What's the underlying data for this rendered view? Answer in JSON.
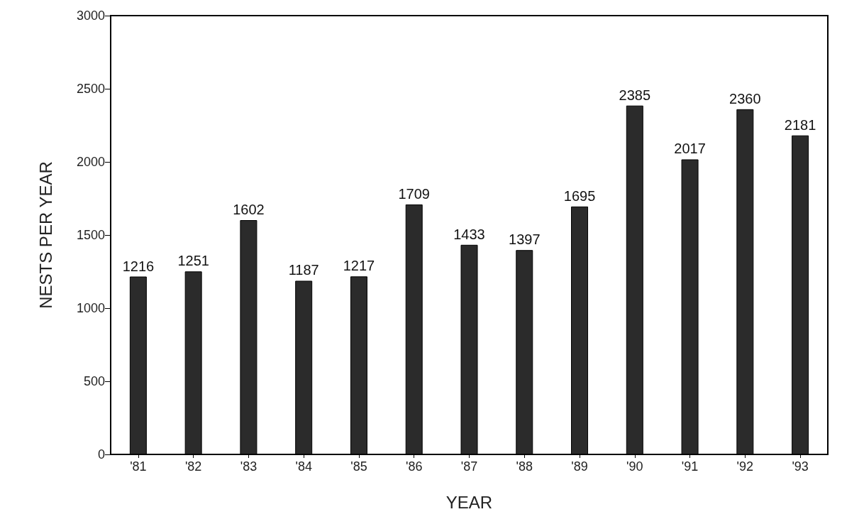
{
  "chart_data": {
    "type": "bar",
    "xlabel": "YEAR",
    "ylabel": "NESTS PER YEAR",
    "categories": [
      "'81",
      "'82",
      "'83",
      "'84",
      "'85",
      "'86",
      "'87",
      "'88",
      "'89",
      "'90",
      "'91",
      "'92",
      "'93"
    ],
    "values": [
      1216,
      1251,
      1602,
      1187,
      1217,
      1709,
      1433,
      1397,
      1695,
      2385,
      2017,
      2360,
      2181
    ],
    "color": "#2b2b2b",
    "ylim": [
      0,
      3000
    ],
    "yticks": [
      0,
      500,
      1000,
      1500,
      2000,
      2500,
      3000
    ],
    "data_labels": true,
    "grid": false
  }
}
